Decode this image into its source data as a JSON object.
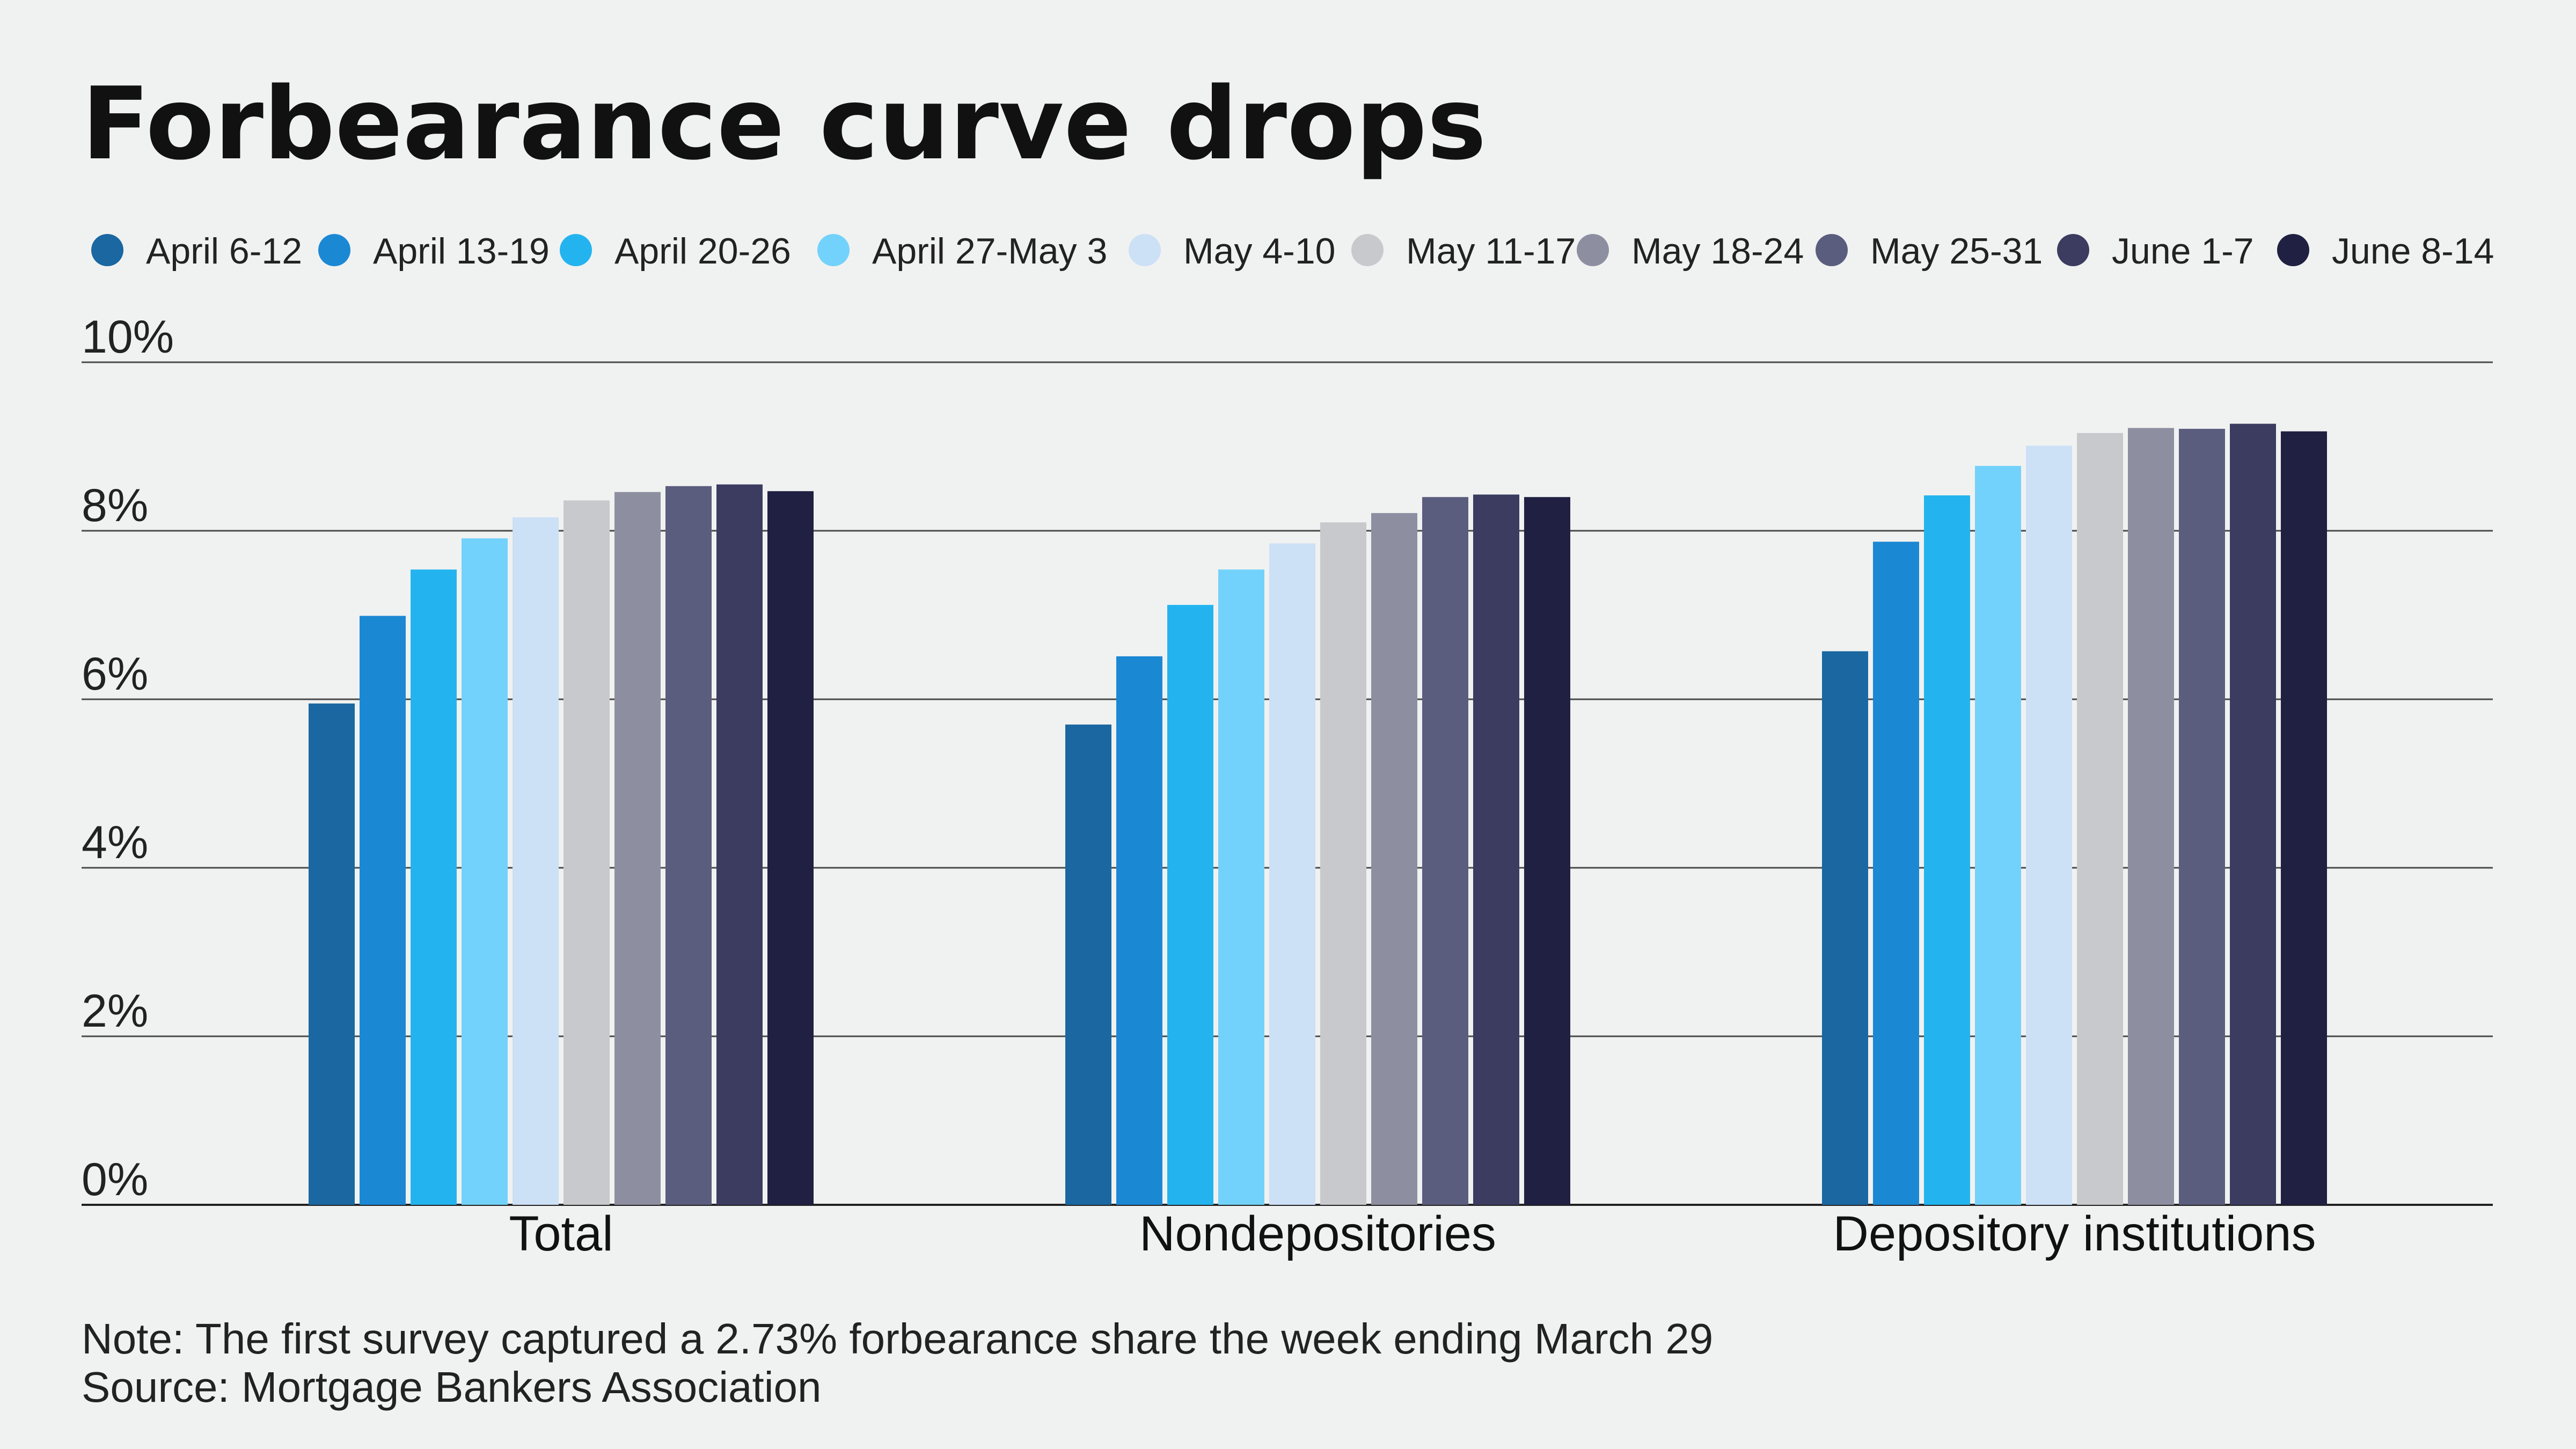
{
  "chart_data": {
    "type": "bar",
    "title": "Forbearance curve drops",
    "categories": [
      "Total",
      "Nondepositories",
      "Depository institutions"
    ],
    "series": [
      {
        "name": "April 6-12",
        "color": "#1a67a1",
        "values": [
          5.95,
          5.7,
          6.57
        ]
      },
      {
        "name": "April 13-19",
        "color": "#1b88d4",
        "values": [
          6.99,
          6.51,
          7.87
        ]
      },
      {
        "name": "April 20-26",
        "color": "#23b4f0",
        "values": [
          7.54,
          7.12,
          8.42
        ]
      },
      {
        "name": "April 27-May 3",
        "color": "#73d2fb",
        "values": [
          7.91,
          7.54,
          8.77
        ]
      },
      {
        "name": "May 4-10",
        "color": "#cce0f6",
        "values": [
          8.16,
          7.85,
          9.01
        ]
      },
      {
        "name": "May 11-17",
        "color": "#c8c9cc",
        "values": [
          8.36,
          8.1,
          9.16
        ]
      },
      {
        "name": "May 18-24",
        "color": "#8d8fa1",
        "values": [
          8.46,
          8.21,
          9.22
        ]
      },
      {
        "name": "May 25-31",
        "color": "#5b5d7e",
        "values": [
          8.53,
          8.4,
          9.21
        ]
      },
      {
        "name": "June 1-7",
        "color": "#3b3c60",
        "values": [
          8.55,
          8.43,
          9.27
        ]
      },
      {
        "name": "June 8-14",
        "color": "#1f2042",
        "values": [
          8.47,
          8.4,
          9.18
        ]
      }
    ],
    "y_ticks": [
      {
        "value": 0,
        "label": "0%"
      },
      {
        "value": 2,
        "label": "2%"
      },
      {
        "value": 4,
        "label": "4%"
      },
      {
        "value": 6,
        "label": "6%"
      },
      {
        "value": 8,
        "label": "8%"
      },
      {
        "value": 10,
        "label": "10%"
      }
    ],
    "ylim": [
      0,
      10
    ],
    "grid": true,
    "legend": "top",
    "xlabel": "",
    "ylabel": ""
  },
  "footer": {
    "note": "Note: The first survey captured a 2.73% forbearance share the week ending March 29",
    "source": "Source: Mortgage Bankers Association"
  }
}
